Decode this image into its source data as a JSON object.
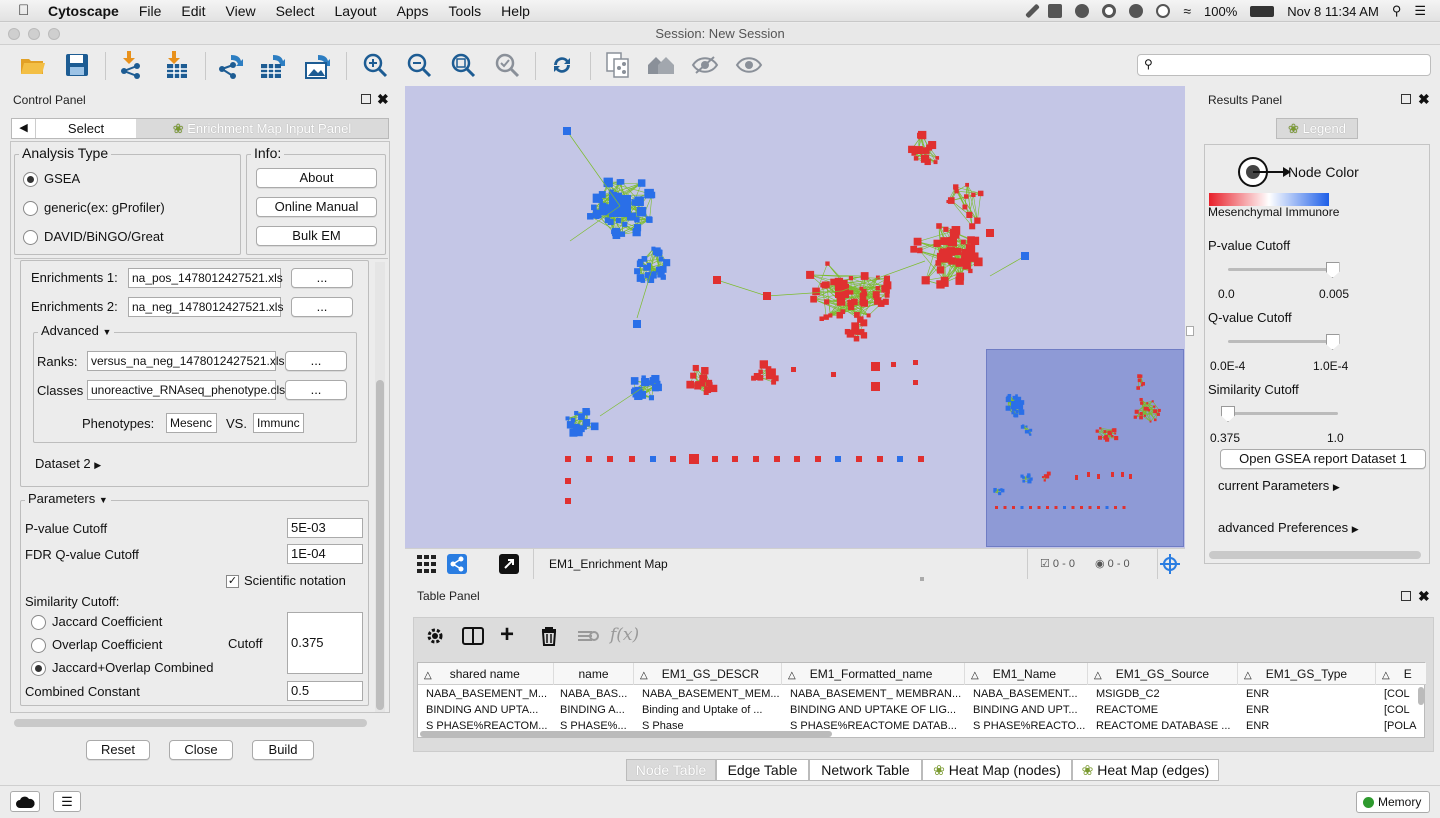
{
  "menubar": {
    "app_name": "Cytoscape",
    "items": [
      "File",
      "Edit",
      "View",
      "Select",
      "Layout",
      "Apps",
      "Tools",
      "Help"
    ],
    "battery": "100%",
    "clock": "Nov 8  11:34 AM"
  },
  "window": {
    "title": "Session: New Session"
  },
  "search": {
    "placeholder": ""
  },
  "control_panel": {
    "title": "Control Panel",
    "tab_select": "Select",
    "tab_em": "Enrichment Map Input Panel",
    "analysis_type": {
      "title": "Analysis Type",
      "options": [
        "GSEA",
        "generic(ex: gProfiler)",
        "DAVID/BiNGO/Great"
      ],
      "selected": "GSEA"
    },
    "info": {
      "title": "Info:",
      "about": "About",
      "manual": "Online Manual",
      "bulk": "Bulk EM"
    },
    "dataset": {
      "enrich1_label": "Enrichments 1:",
      "enrich1_value": "na_pos_1478012427521.xls",
      "enrich2_label": "Enrichments 2:",
      "enrich2_value": "na_neg_1478012427521.xls",
      "browse": "...",
      "advanced_label": "Advanced",
      "ranks_label": "Ranks:",
      "ranks_value": "versus_na_neg_1478012427521.xls",
      "classes_label": "Classes",
      "classes_value": "unoreactive_RNAseq_phenotype.cls",
      "phenotypes_label": "Phenotypes:",
      "pheno1": "Mesenc",
      "vs": "VS.",
      "pheno2": "Immunc",
      "dataset2": "Dataset 2"
    },
    "parameters": {
      "title": "Parameters",
      "pvalue_label": "P-value Cutoff",
      "pvalue": "5E-03",
      "fdr_label": "FDR Q-value Cutoff",
      "fdr": "1E-04",
      "scientific": "Scientific notation",
      "similarity_title": "Similarity Cutoff:",
      "jaccard": "Jaccard Coefficient",
      "overlap": "Overlap Coefficient",
      "combined": "Jaccard+Overlap Combined",
      "cutoff_label": "Cutoff",
      "cutoff": "0.375",
      "constant_label": "Combined Constant",
      "constant": "0.5"
    },
    "buttons": {
      "reset": "Reset",
      "close": "Close",
      "build": "Build"
    }
  },
  "network": {
    "name": "EM1_Enrichment Map",
    "selected_nodes": "0 - 0",
    "hidden": "0 - 0"
  },
  "results_panel": {
    "title": "Results Panel",
    "legend_tab": "Legend",
    "node_color": "Node Color",
    "gradient_left": "Mesenchymal",
    "gradient_right": "Immunore",
    "pvalue_title": "P-value Cutoff",
    "pvalue_min": "0.0",
    "pvalue_max": "0.005",
    "pvalue_level": 0.95,
    "qvalue_title": "Q-value Cutoff",
    "qvalue_min": "0.0E-4",
    "qvalue_max": "1.0E-4",
    "qvalue_level": 0.95,
    "similarity_title": "Similarity Cutoff",
    "similarity_min": "0.375",
    "similarity_max": "1.0",
    "similarity_level": 0.0,
    "open_report": "Open GSEA report Dataset 1",
    "current_params": "current Parameters",
    "advanced_prefs": "advanced Preferences"
  },
  "table_panel": {
    "title": "Table Panel",
    "fx": "f(x)",
    "columns": [
      "shared name",
      "name",
      "EM1_GS_DESCR",
      "EM1_Formatted_name",
      "EM1_Name",
      "EM1_GS_Source",
      "EM1_GS_Type",
      "E"
    ],
    "rows": [
      [
        "NABA_BASEMENT_M...",
        "NABA_BAS...",
        "NABA_BASEMENT_MEM...",
        "NABA_BASEMENT_ MEMBRAN...",
        "NABA_BASEMENT...",
        "MSIGDB_C2",
        "ENR",
        "[COL"
      ],
      [
        "BINDING AND UPTA...",
        "BINDING A...",
        "Binding and Uptake of ...",
        "BINDING AND  UPTAKE OF LIG...",
        "BINDING AND UPT...",
        "REACTOME",
        "ENR",
        "[COL"
      ],
      [
        "S PHASE%REACTOM...",
        "S PHASE%...",
        "S Phase",
        "S PHASE%REACTOME  DATAB...",
        "S PHASE%REACTO...",
        "REACTOME DATABASE ...",
        "ENR",
        "[POLA"
      ]
    ],
    "tabs": [
      "Node Table",
      "Edge Table",
      "Network Table",
      "Heat Map (nodes)",
      "Heat Map (edges)"
    ]
  },
  "statusbar": {
    "memory": "Memory"
  },
  "colors": {
    "canvas": "#c4c6e6",
    "up": "#e03030",
    "down": "#2a6fe8",
    "edge": "#7cbc2c"
  }
}
